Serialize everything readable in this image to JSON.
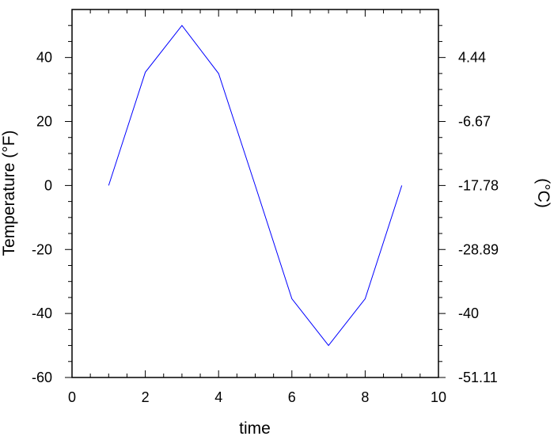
{
  "chart_data": {
    "type": "line",
    "xlabel": "time",
    "ylabel": "Temperature (°F)",
    "ylabel_right": "(°C)",
    "xlim": [
      0,
      10
    ],
    "ylim": [
      -60,
      55
    ],
    "x_ticks": [
      0,
      2,
      4,
      6,
      8,
      10
    ],
    "x_tick_labels": [
      "0",
      "2",
      "4",
      "6",
      "8",
      "10"
    ],
    "y_ticks": [
      -60,
      -40,
      -20,
      0,
      20,
      40
    ],
    "y_tick_labels": [
      "-60",
      "-40",
      "-20",
      "0",
      "20",
      "40"
    ],
    "y_right_ticks": [
      -60,
      -40,
      -20,
      0,
      20,
      40
    ],
    "y_right_tick_labels": [
      "-51.11",
      "-40",
      "-28.89",
      "-17.78",
      "-6.67",
      "4.44"
    ],
    "grid": false,
    "series": [
      {
        "color": "#0000ff",
        "x": [
          1,
          2,
          3,
          4,
          5,
          6,
          7,
          8,
          9
        ],
        "y": [
          0,
          35.4,
          50,
          35.0,
          0,
          -35.4,
          -50,
          -35.4,
          0
        ]
      }
    ]
  }
}
